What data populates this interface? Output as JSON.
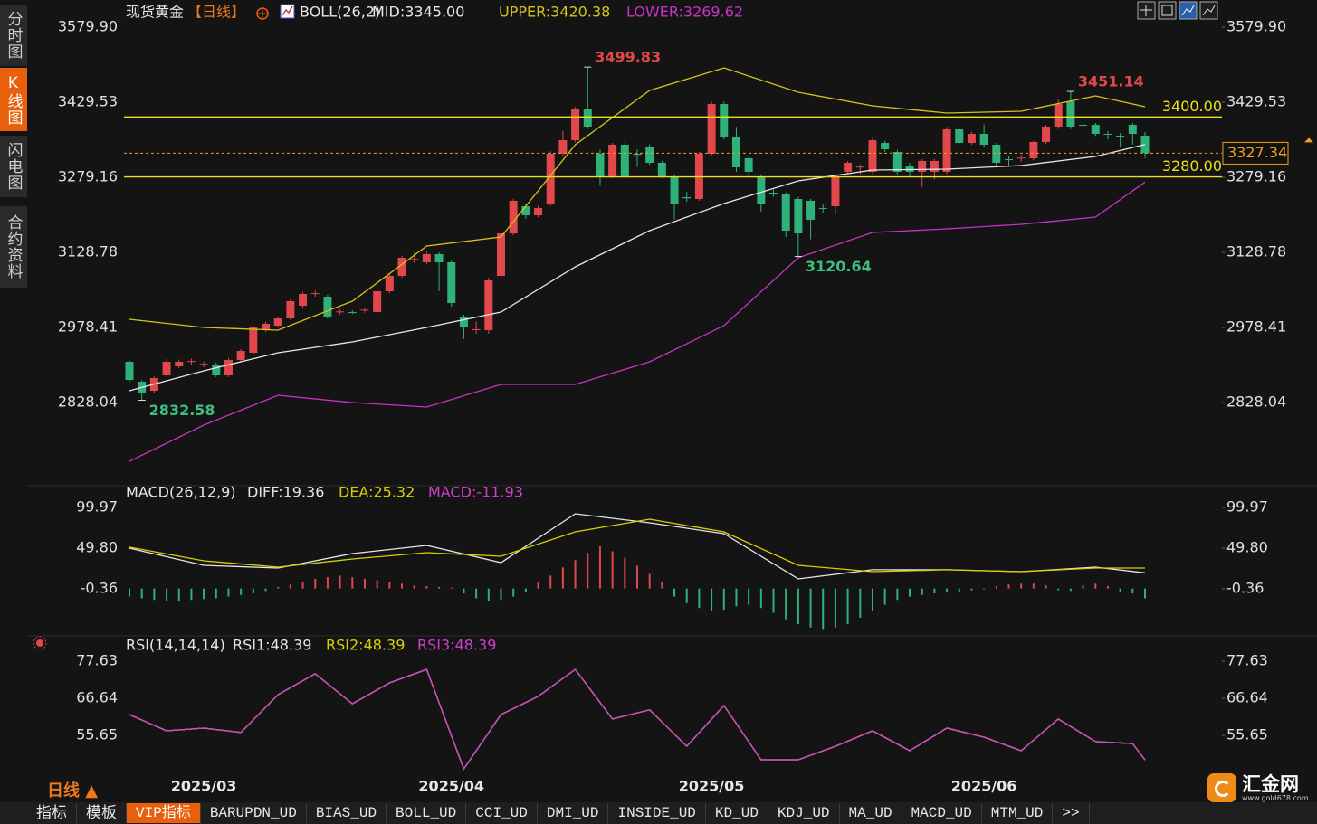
{
  "chart_data": [
    {
      "type": "candlestick",
      "title": "现货黄金",
      "period": "【日线】",
      "indicator": "BOLL(26,2)",
      "categories": [
        null,
        null,
        null,
        null,
        null,
        null,
        "2025/03",
        null,
        null,
        null,
        null,
        null,
        null,
        null,
        null,
        null,
        null,
        null,
        null,
        null,
        null,
        null,
        null,
        null,
        null,
        null,
        "2025/04",
        null,
        null,
        null,
        null,
        null,
        null,
        null,
        null,
        null,
        null,
        null,
        null,
        null,
        null,
        null,
        null,
        null,
        null,
        null,
        null,
        "2025/05",
        null,
        null,
        null,
        null,
        null,
        null,
        null,
        null,
        null,
        null,
        null,
        null,
        null,
        null,
        null,
        null,
        null,
        null,
        null,
        null,
        null,
        "2025/06",
        null,
        null,
        null,
        null,
        null,
        null,
        null,
        null,
        null,
        null,
        null,
        null,
        null
      ],
      "ohlc": [
        [
          2909.6,
          2913,
          2869,
          2873.3
        ],
        [
          2869.7,
          2873,
          2832.58,
          2846.2
        ],
        [
          2851.6,
          2880,
          2848,
          2876.9
        ],
        [
          2882.4,
          2915,
          2879,
          2909.6
        ],
        [
          2900.5,
          2914,
          2897,
          2909.6
        ],
        [
          2909.6,
          2916,
          2904,
          2911
        ],
        [
          2904.1,
          2910,
          2899,
          2905.5
        ],
        [
          2904.1,
          2908,
          2879,
          2882.4
        ],
        [
          2882.4,
          2917,
          2879,
          2913.2
        ],
        [
          2913.2,
          2935,
          2910,
          2931.3
        ],
        [
          2927.7,
          2982,
          2924,
          2978.4
        ],
        [
          2973,
          2990,
          2970,
          2985.7
        ],
        [
          2982,
          3000,
          2978,
          2996.5
        ],
        [
          2996.5,
          3035,
          2993,
          3031
        ],
        [
          3021.9,
          3050,
          3018,
          3045.5
        ],
        [
          3045.5,
          3052,
          3040,
          3047
        ],
        [
          3040,
          3044,
          2996,
          3000.2
        ],
        [
          3009.2,
          3015,
          3004,
          3010.5
        ],
        [
          3009.2,
          3013,
          3005,
          3008
        ],
        [
          3012.8,
          3018,
          3008,
          3014
        ],
        [
          3009.2,
          3055,
          3006,
          3050.9
        ],
        [
          3050.9,
          3086,
          3047,
          3081.7
        ],
        [
          3081.7,
          3122,
          3078,
          3117.9
        ],
        [
          3114,
          3128,
          3108,
          3115.5
        ],
        [
          3108.9,
          3130,
          3105,
          3125.2
        ],
        [
          3125.2,
          3129,
          3050.9,
          3108.9
        ],
        [
          3108.9,
          3112,
          3020,
          3027.4
        ],
        [
          3000.2,
          3004,
          2954.8,
          2978.4
        ],
        [
          2973,
          2990,
          2966,
          2975
        ],
        [
          2973,
          3078,
          2966,
          3072.6
        ],
        [
          3081.7,
          3170,
          3078,
          3166.8
        ],
        [
          3166.8,
          3236,
          3163,
          3232.1
        ],
        [
          3221.2,
          3226,
          3196,
          3203.1
        ],
        [
          3203.1,
          3222,
          3199,
          3217.6
        ],
        [
          3226.6,
          3331,
          3222,
          3326.3
        ],
        [
          3326.3,
          3372,
          3322,
          3353.4
        ],
        [
          3353.4,
          3420,
          3349,
          3416.8
        ],
        [
          3416.8,
          3499.83,
          3376,
          3380.6
        ],
        [
          3326.3,
          3335,
          3262,
          3281
        ],
        [
          3281,
          3348,
          3277,
          3344.4
        ],
        [
          3344.4,
          3349.8,
          3277,
          3281
        ],
        [
          3326.3,
          3335,
          3300,
          3324
        ],
        [
          3340.8,
          3345,
          3304,
          3308.2
        ],
        [
          3308.2,
          3312,
          3277,
          3281
        ],
        [
          3281,
          3285,
          3195,
          3226.6
        ],
        [
          3239.3,
          3250,
          3230,
          3237
        ],
        [
          3235.7,
          3330,
          3232,
          3326.3
        ],
        [
          3326.3,
          3431,
          3322,
          3425.9
        ],
        [
          3425.9,
          3431,
          3355,
          3358.9
        ],
        [
          3358.9,
          3380,
          3290,
          3299.1
        ],
        [
          3317.2,
          3321,
          3282,
          3290.1
        ],
        [
          3281,
          3285,
          3210,
          3226.6
        ],
        [
          3248.4,
          3255,
          3240,
          3246
        ],
        [
          3244.7,
          3249,
          3160,
          3172.3
        ],
        [
          3235.7,
          3240,
          3120.64,
          3166.8
        ],
        [
          3232.1,
          3236,
          3155,
          3194
        ],
        [
          3217.6,
          3225,
          3208,
          3216
        ],
        [
          3221.2,
          3283,
          3205,
          3279.2
        ],
        [
          3290.1,
          3312,
          3286,
          3308.2
        ],
        [
          3299.1,
          3305,
          3285,
          3300.5
        ],
        [
          3290.1,
          3358,
          3286,
          3353.4
        ],
        [
          3348,
          3352,
          3330,
          3335.3
        ],
        [
          3329.9,
          3334,
          3285,
          3290.1
        ],
        [
          3302.7,
          3308,
          3280,
          3290.1
        ],
        [
          3290.1,
          3315,
          3260,
          3311.8
        ],
        [
          3290.1,
          3316,
          3275,
          3311.8
        ],
        [
          3290.1,
          3380,
          3286,
          3375.2
        ],
        [
          3375.2,
          3380,
          3345,
          3348
        ],
        [
          3348,
          3370,
          3344,
          3366.1
        ],
        [
          3366.1,
          3385,
          3340,
          3344.4
        ],
        [
          3344.4,
          3348,
          3300,
          3308.2
        ],
        [
          3315.4,
          3322,
          3300,
          3313.5
        ],
        [
          3317.2,
          3324,
          3310,
          3318.5
        ],
        [
          3317.2,
          3352,
          3313,
          3349.8
        ],
        [
          3349.8,
          3384,
          3346,
          3380.6
        ],
        [
          3380.6,
          3435,
          3376,
          3425.9
        ],
        [
          3431.3,
          3451.14,
          3376,
          3380.6
        ],
        [
          3384.2,
          3390,
          3376,
          3382.5
        ],
        [
          3384.2,
          3388,
          3362,
          3366.1
        ],
        [
          3366.1,
          3372,
          3355,
          3364.5
        ],
        [
          3362.5,
          3368,
          3340,
          3361
        ],
        [
          3384.2,
          3388,
          3345,
          3366.1
        ],
        [
          3362.5,
          3370,
          3318,
          3327.34
        ]
      ],
      "up_color": "#e2474b",
      "down_color": "#2fb27a",
      "series": [
        {
          "name": "MID:3345.00",
          "color": "#e6e6e6",
          "x": [
            0,
            6,
            12,
            18,
            24,
            30,
            36,
            42,
            48,
            54,
            60,
            66,
            72,
            78,
            82
          ],
          "values": [
            2851.6,
            2891.5,
            2927.7,
            2949.5,
            2978.4,
            3009.2,
            3099.8,
            3172.3,
            3226.6,
            3271.9,
            3293.7,
            3295.5,
            3302.7,
            3320.8,
            3345.0
          ]
        },
        {
          "name": "UPPER:3420.38",
          "color": "#d4c41a",
          "x": [
            0,
            6,
            12,
            18,
            24,
            30,
            36,
            42,
            48,
            54,
            60,
            66,
            72,
            78,
            82
          ],
          "values": [
            2994.7,
            2978.4,
            2973.0,
            3031.0,
            3141.5,
            3159.6,
            3344.4,
            3453.1,
            3498.4,
            3449.5,
            3422.3,
            3407.8,
            3411.4,
            3442.2,
            3420.4
          ]
        },
        {
          "name": "LOWER:3269.62",
          "color": "#c733c7",
          "x": [
            0,
            6,
            12,
            18,
            24,
            30,
            36,
            42,
            48,
            54,
            60,
            66,
            72,
            78,
            82
          ],
          "values": [
            2710.3,
            2782.8,
            2842.6,
            2828.0,
            2819.0,
            2864.3,
            2864.3,
            2909.6,
            2982.0,
            3117.9,
            3168.6,
            3175.9,
            3185.0,
            3199.5,
            3269.6
          ]
        }
      ],
      "hlines": [
        {
          "value": 3400,
          "label": "3400.00"
        },
        {
          "value": 3280,
          "label": "3280.00"
        }
      ],
      "hline_color": "#e8e21c",
      "last_price": 3327.34,
      "last_color": "#f0a020",
      "annotations": [
        {
          "x": 37,
          "value": 3499.83,
          "color": "#e2474b"
        },
        {
          "x": 76,
          "value": 3451.14,
          "color": "#e2474b"
        },
        {
          "x": 54,
          "value": 3120.64,
          "color": "#3fbf7f"
        },
        {
          "x": 1,
          "value": 2832.58,
          "color": "#3fbf7f"
        }
      ],
      "ylim": [
        2692.2,
        3594.4
      ],
      "yticks": [
        {
          "value": 3579.9,
          "label": "3579.90"
        },
        3429.53,
        3279.16,
        3128.78,
        2978.41,
        2828.04
      ],
      "grid": false
    },
    {
      "type": "macd",
      "title": "MACD(26,12,9)",
      "series": [
        {
          "name": "DIFF:19.36",
          "color": "#e6e6e6",
          "x": [
            0,
            6,
            12,
            18,
            24,
            30,
            36,
            42,
            48,
            54,
            60,
            66,
            72,
            78,
            82
          ],
          "values": [
            49.8,
            28.6,
            25.3,
            43.1,
            53.2,
            32.0,
            92.2,
            81.0,
            67.6,
            11.9,
            23.1,
            23.1,
            20.8,
            26.4,
            19.36
          ]
        },
        {
          "name": "DEA:25.32",
          "color": "#d8d000",
          "x": [
            0,
            6,
            12,
            18,
            24,
            30,
            36,
            42,
            48,
            54,
            60,
            66,
            72,
            78,
            82
          ],
          "values": [
            51.0,
            34.2,
            26.4,
            36.4,
            44.2,
            39.8,
            69.9,
            85.5,
            69.9,
            28.6,
            20.8,
            23.1,
            20.8,
            25.3,
            25.32
          ]
        },
        {
          "name": "MACD:-11.93",
          "color": "#d040d0",
          "kind": "bar",
          "up_color": "#e2474b",
          "down_color": "#2fb27a",
          "values": [
            -10,
            -12,
            -14,
            -16,
            -15,
            -14,
            -13,
            -12,
            -10,
            -8,
            -6,
            -3,
            2,
            5,
            8,
            12,
            14,
            16,
            14,
            12,
            10,
            8,
            6,
            4,
            3,
            2,
            1,
            -6,
            -12,
            -15,
            -14,
            -10,
            -4,
            8,
            16,
            26,
            35,
            44,
            52,
            46,
            38,
            28,
            18,
            8,
            -10,
            -18,
            -24,
            -28,
            -26,
            -22,
            -20,
            -24,
            -30,
            -38,
            -44,
            -48,
            -50,
            -48,
            -44,
            -36,
            -28,
            -20,
            -14,
            -10,
            -8,
            -6,
            -5,
            -4,
            -2,
            -1,
            3,
            5,
            6,
            6,
            4,
            -2,
            -3,
            4,
            6,
            3,
            -4,
            -6,
            -11.93
          ]
        }
      ],
      "ylim": [
        -55.0,
        106.66
      ],
      "yticks": [
        99.97,
        {
          "value": 49.8,
          "label": "49.80"
        },
        -0.36
      ],
      "grid": false
    },
    {
      "type": "line",
      "title": "RSI(14,14,14)",
      "series": [
        {
          "name": "RSI1:48.39",
          "color": "#e6e6e6",
          "x": [
            0,
            3,
            6,
            9,
            12,
            15,
            18,
            21,
            24,
            27,
            30,
            33,
            36,
            39,
            42,
            45,
            48,
            51,
            54,
            57,
            60,
            63,
            66,
            69,
            72,
            75,
            78,
            81,
            82
          ],
          "values": [
            61.8,
            57.0,
            57.8,
            56.5,
            67.7,
            73.9,
            65.0,
            71.2,
            75.2,
            45.7,
            61.8,
            67.2,
            75.2,
            60.5,
            63.2,
            52.4,
            64.5,
            48.4,
            48.4,
            52.4,
            57.0,
            51.1,
            57.8,
            55.1,
            51.1,
            60.5,
            53.8,
            53.2,
            48.39
          ]
        },
        {
          "name": "RSI2:48.39",
          "color": "#d8d000",
          "x": [
            0,
            3,
            6,
            9,
            12,
            15,
            18,
            21,
            24,
            27,
            30,
            33,
            36,
            39,
            42,
            45,
            48,
            51,
            54,
            57,
            60,
            63,
            66,
            69,
            72,
            75,
            78,
            81,
            82
          ],
          "values": [
            61.8,
            57.0,
            57.8,
            56.5,
            67.7,
            73.9,
            65.0,
            71.2,
            75.2,
            45.7,
            61.8,
            67.2,
            75.2,
            60.5,
            63.2,
            52.4,
            64.5,
            48.4,
            48.4,
            52.4,
            57.0,
            51.1,
            57.8,
            55.1,
            51.1,
            60.5,
            53.8,
            53.2,
            48.39
          ]
        },
        {
          "name": "RSI3:48.39",
          "color": "#d040d0",
          "x": [
            0,
            3,
            6,
            9,
            12,
            15,
            18,
            21,
            24,
            27,
            30,
            33,
            36,
            39,
            42,
            45,
            48,
            51,
            54,
            57,
            60,
            63,
            66,
            69,
            72,
            75,
            78,
            81,
            82
          ],
          "values": [
            61.8,
            57.0,
            57.8,
            56.5,
            67.7,
            73.9,
            65.0,
            71.2,
            75.2,
            45.7,
            61.8,
            67.2,
            75.2,
            60.5,
            63.2,
            52.4,
            64.5,
            48.4,
            48.4,
            52.4,
            57.0,
            51.1,
            57.8,
            55.1,
            51.1,
            60.5,
            53.8,
            53.2,
            48.39
          ]
        }
      ],
      "ylim": [
        43.05,
        80.04
      ],
      "yticks": [
        77.63,
        66.64,
        55.65
      ],
      "grid": false
    }
  ],
  "ui": {
    "sidebar": [
      "分时图",
      "K线图",
      "闪电图",
      "合约资料"
    ],
    "sidebar_active": 1,
    "period_label": "日线 ▲",
    "tabs": [
      "指标",
      "模板",
      "VIP指标",
      "BARUPDN_UD",
      "BIAS_UD",
      "BOLL_UD",
      "CCI_UD",
      "DMI_UD",
      "INSIDE_UD",
      "KD_UD",
      "KDJ_UD",
      "MA_UD",
      "MACD_UD",
      "MTM_UD",
      ">>"
    ],
    "active_tab": 2,
    "logo": {
      "name": "汇金网",
      "url": "www.gold678.com"
    }
  }
}
